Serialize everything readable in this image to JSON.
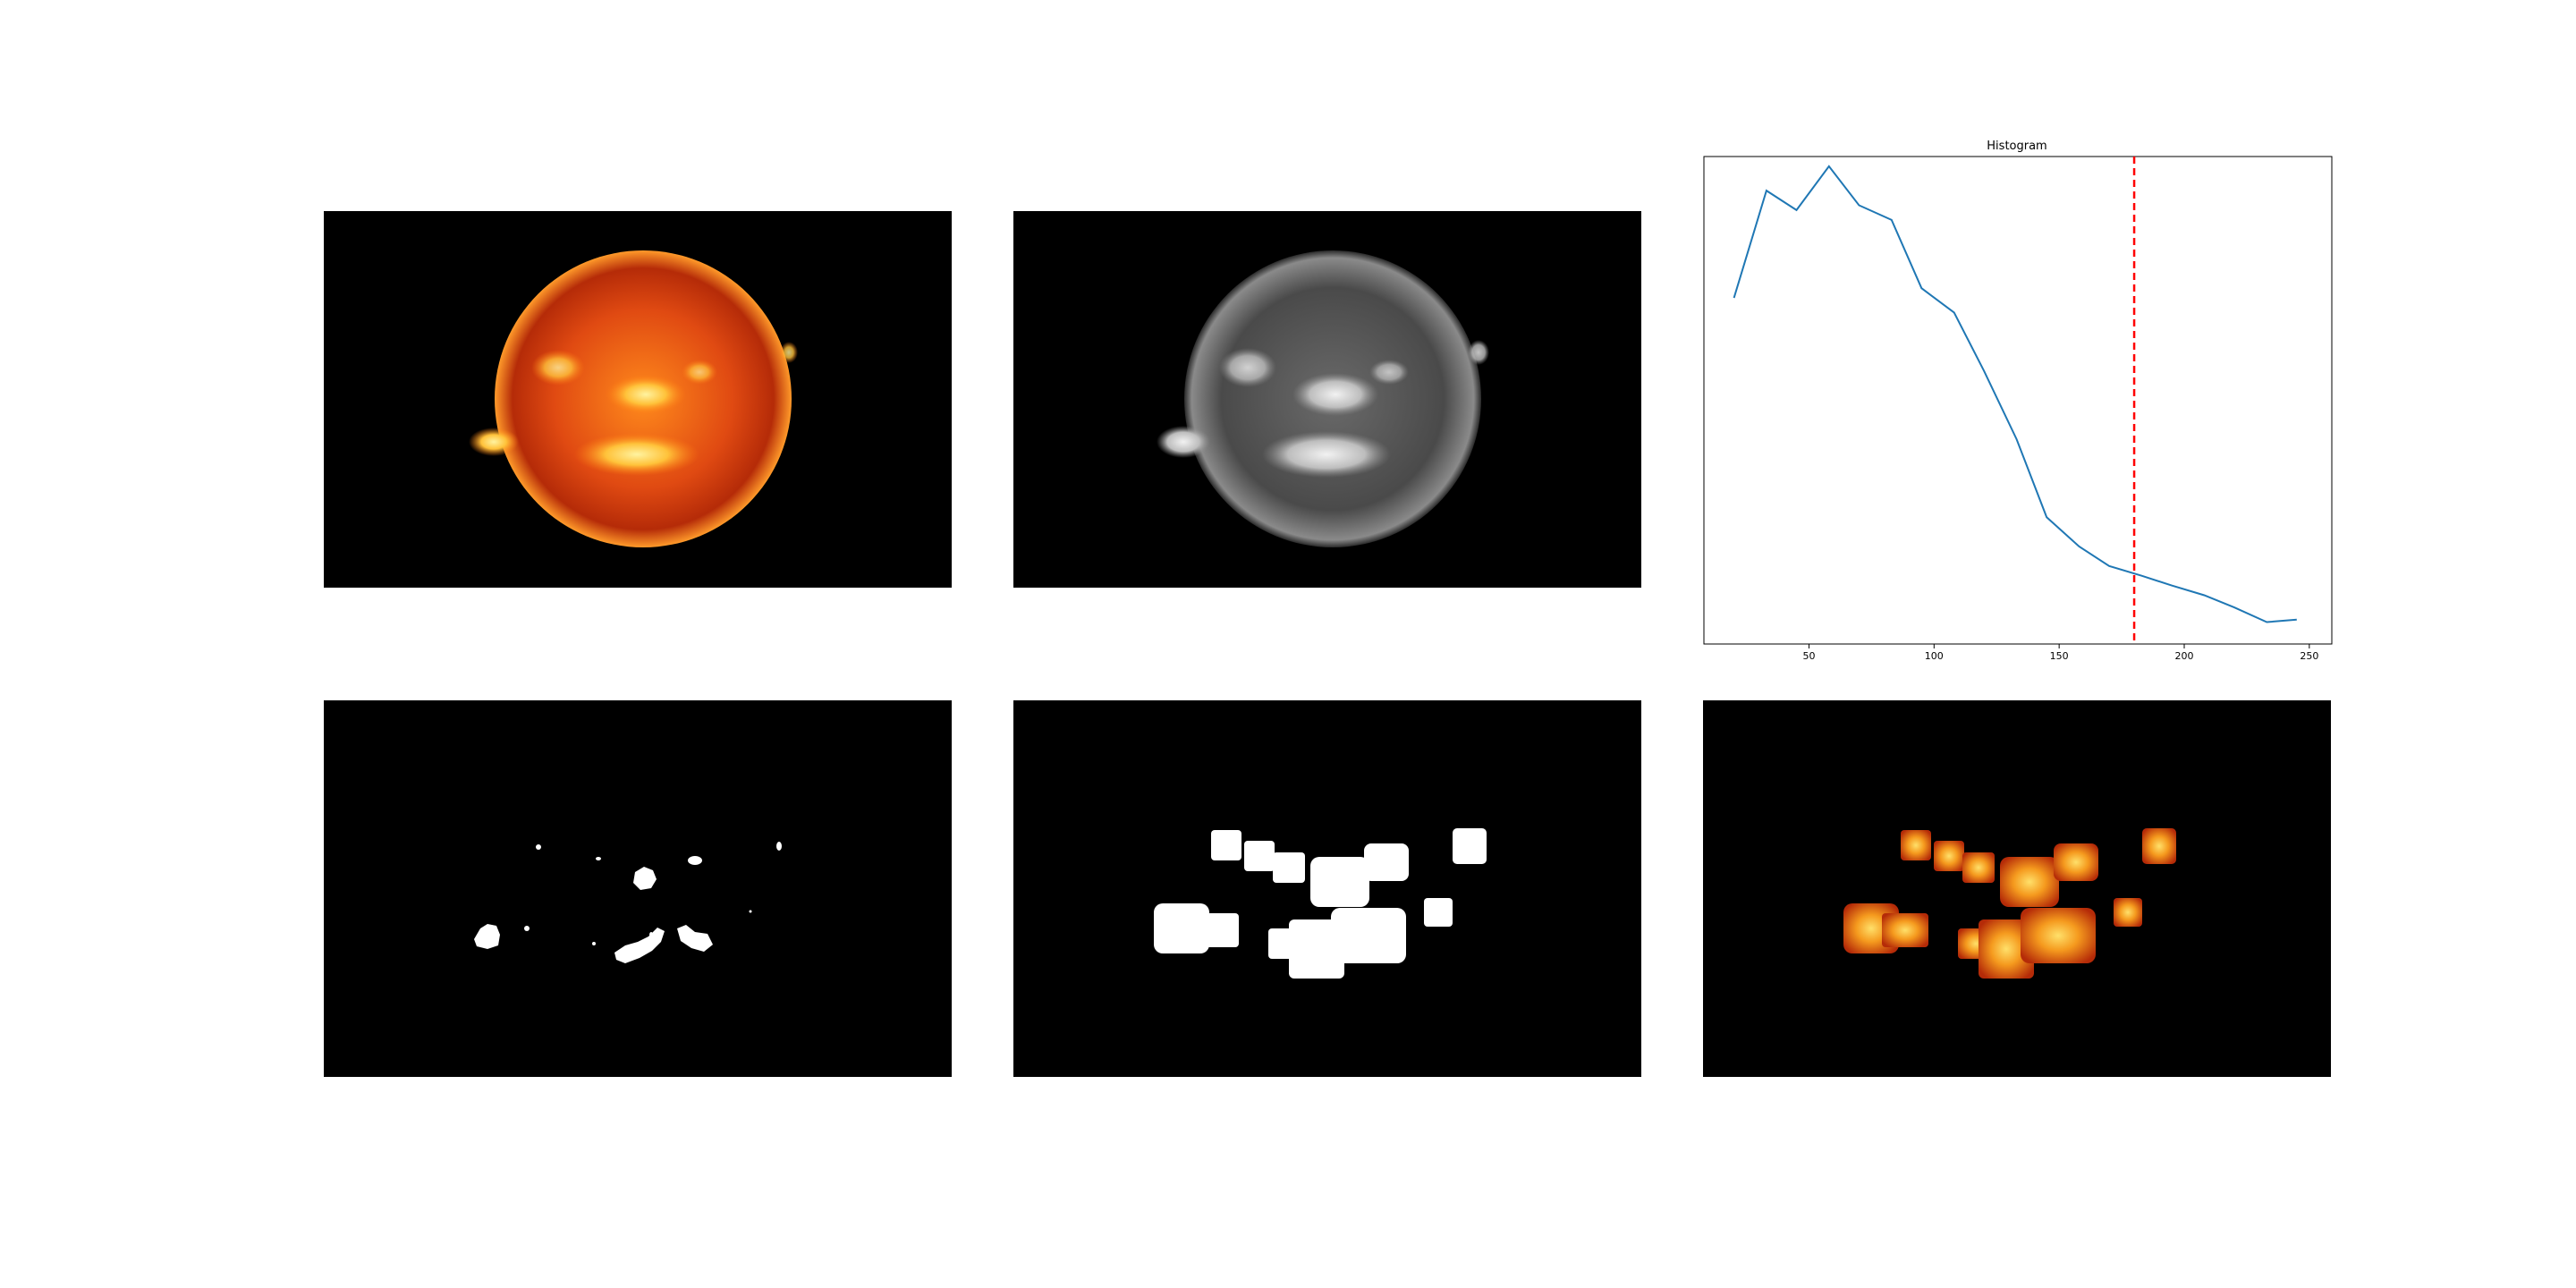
{
  "chart_data": [
    {
      "type": "image",
      "panel": "original",
      "description": "",
      "colors": {
        "background": "#000000",
        "sun_core": "#ffd23a",
        "sun_mid": "#e8501a",
        "sun_edge": "#8a1c05"
      }
    },
    {
      "type": "image",
      "panel": "grayscale",
      "colors": {
        "background": "#000000",
        "sun_light": "#e6e6e6",
        "sun_dark": "#3a3a3a"
      }
    },
    {
      "type": "line",
      "title": "Histogram",
      "xlabel": "",
      "ylabel": "",
      "x_ticks": [
        50,
        100,
        150,
        200,
        250
      ],
      "xlim": [
        8,
        259
      ],
      "ylim": [
        0,
        1
      ],
      "y_ticks_shown": false,
      "series": [
        {
          "color": "#1f77b4",
          "x": [
            20,
            33,
            45,
            58,
            70,
            83,
            95,
            108,
            120,
            133,
            145,
            158,
            170,
            183,
            195,
            208,
            220,
            233,
            245
          ],
          "y": [
            0.71,
            0.93,
            0.89,
            0.98,
            0.9,
            0.87,
            0.73,
            0.68,
            0.56,
            0.42,
            0.26,
            0.2,
            0.16,
            0.14,
            0.12,
            0.1,
            0.075,
            0.045,
            0.05
          ]
        }
      ],
      "threshold_line": {
        "x": 180,
        "color": "#ff0000",
        "style": "dashed"
      },
      "grid": false
    },
    {
      "type": "image",
      "panel": "threshold_mask",
      "colors": {
        "background": "#000000",
        "foreground": "#ffffff"
      }
    },
    {
      "type": "image",
      "panel": "dilated_mask",
      "colors": {
        "background": "#000000",
        "foreground": "#ffffff"
      }
    },
    {
      "type": "image",
      "panel": "masked_result",
      "colors": {
        "background": "#000000",
        "patch_core": "#ffd23a",
        "patch_edge": "#c8300c"
      }
    }
  ]
}
